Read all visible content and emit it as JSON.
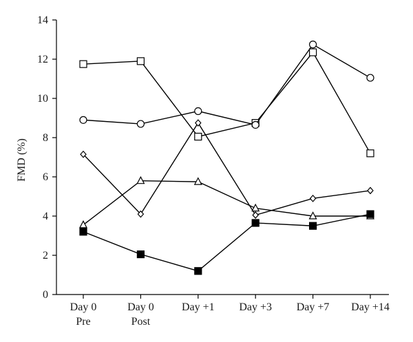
{
  "chart_data": {
    "type": "line",
    "title": "",
    "xlabel": "",
    "ylabel": "FMD (%)",
    "ylim": [
      0,
      14
    ],
    "yticks": [
      0,
      2,
      4,
      6,
      8,
      10,
      12,
      14
    ],
    "categories": [
      [
        "Day 0",
        "Pre"
      ],
      [
        "Day 0",
        "Post"
      ],
      [
        "Day +1"
      ],
      [
        "Day +3"
      ],
      [
        "Day +7"
      ],
      [
        "Day +14"
      ]
    ],
    "legend": "none",
    "grid": false,
    "series": [
      {
        "marker": "open-square",
        "values": [
          11.75,
          11.9,
          8.05,
          8.75,
          12.35,
          7.2
        ]
      },
      {
        "marker": "open-circle",
        "values": [
          8.9,
          8.7,
          9.35,
          8.65,
          12.75,
          11.05
        ]
      },
      {
        "marker": "open-diamond",
        "values": [
          7.15,
          4.1,
          8.75,
          4.05,
          4.9,
          5.3
        ]
      },
      {
        "marker": "open-triangle",
        "values": [
          3.55,
          5.8,
          5.75,
          4.4,
          4.0,
          4.0
        ]
      },
      {
        "marker": "filled-square",
        "values": [
          3.2,
          2.05,
          1.2,
          3.65,
          3.5,
          4.1
        ]
      }
    ]
  }
}
